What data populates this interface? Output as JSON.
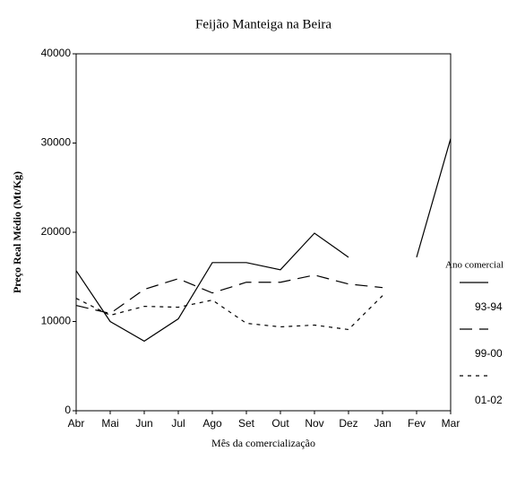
{
  "chart_data": {
    "type": "line",
    "title": "Feijão Manteiga na Beira",
    "x_label": "Mês da comercialização",
    "y_label": "Preço Real Médio (Mt/Kg)",
    "legend_title": "Ano comercial",
    "legend": "right",
    "categories": [
      "Abr",
      "Mai",
      "Jun",
      "Jul",
      "Ago",
      "Set",
      "Out",
      "Nov",
      "Dez",
      "Jan",
      "Fev",
      "Mar"
    ],
    "ylim": [
      0,
      40000
    ],
    "yticks": [
      0,
      10000,
      20000,
      30000,
      40000
    ],
    "series": [
      {
        "name": "93-94",
        "color": "#000000",
        "dash": "solid",
        "values": [
          15700,
          10000,
          7800,
          10300,
          16600,
          16600,
          15800,
          19900,
          17200,
          null,
          17200,
          30500
        ]
      },
      {
        "name": "99-00",
        "color": "#000000",
        "dash": "long",
        "values": [
          11800,
          10900,
          13600,
          14800,
          13200,
          14400,
          14400,
          15200,
          14200,
          13800,
          null,
          null
        ]
      },
      {
        "name": "01-02",
        "color": "#000000",
        "dash": "short",
        "values": [
          12600,
          10700,
          11700,
          11600,
          12400,
          9800,
          9400,
          9600,
          9100,
          12900,
          null,
          null
        ]
      }
    ]
  }
}
